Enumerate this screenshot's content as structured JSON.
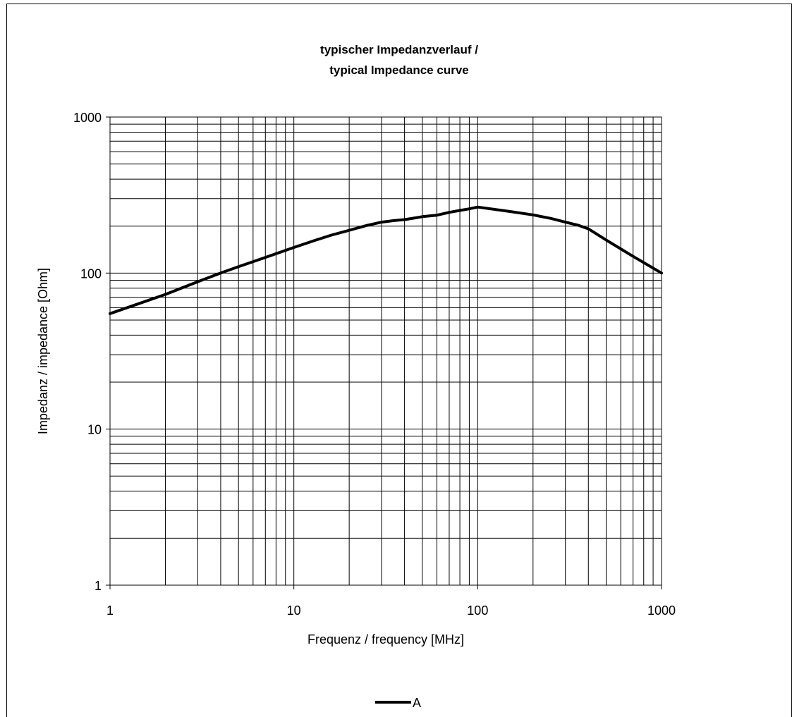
{
  "chart_data": {
    "type": "line",
    "title": "typischer Impedanzverlauf /",
    "subtitle": "typical Impedance curve",
    "xlabel": "Frequenz / frequency [MHz]",
    "ylabel": "Impedanz / impedance [Ohm]",
    "xscale": "log",
    "yscale": "log",
    "xlim": [
      1,
      1000
    ],
    "ylim": [
      1,
      1000
    ],
    "xticks": [
      "1",
      "10",
      "100",
      "1000"
    ],
    "yticks": [
      "1",
      "10",
      "100",
      "1000"
    ],
    "grid": true,
    "legend": "bottom",
    "series": [
      {
        "name": "A",
        "color": "#000000",
        "x": [
          1,
          2,
          3,
          4,
          5,
          7,
          10,
          13,
          16,
          20,
          25,
          30,
          35,
          40,
          45,
          50,
          60,
          70,
          80,
          90,
          100,
          150,
          200,
          250,
          300,
          350,
          400,
          500,
          700,
          1000
        ],
        "y": [
          55,
          73,
          88,
          100,
          110,
          126,
          146,
          162,
          175,
          188,
          202,
          212,
          217,
          220,
          225,
          230,
          235,
          245,
          252,
          258,
          265,
          248,
          236,
          224,
          212,
          203,
          192,
          163,
          128,
          100
        ]
      }
    ]
  }
}
